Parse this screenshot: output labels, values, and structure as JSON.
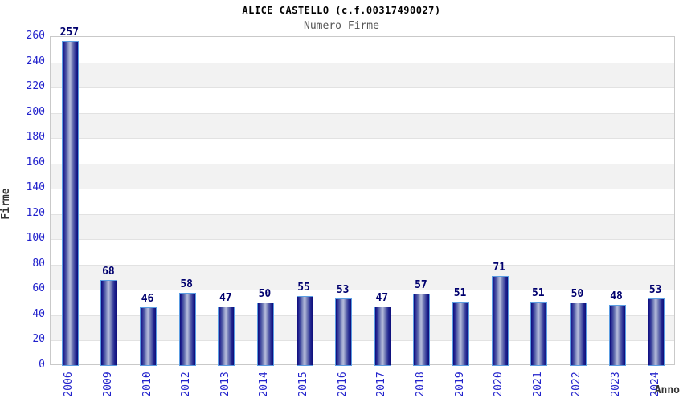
{
  "header": {
    "title": "ALICE CASTELLO (c.f.00317490027)",
    "subtitle": "Numero Firme"
  },
  "chart_data": {
    "type": "bar",
    "title": "ALICE CASTELLO (c.f.00317490027)",
    "subtitle": "Numero Firme",
    "categories": [
      "2006",
      "2009",
      "2010",
      "2012",
      "2013",
      "2014",
      "2015",
      "2016",
      "2017",
      "2018",
      "2019",
      "2020",
      "2021",
      "2022",
      "2023",
      "2024"
    ],
    "values": [
      257,
      68,
      46,
      58,
      47,
      50,
      55,
      53,
      47,
      57,
      51,
      71,
      51,
      50,
      48,
      53
    ],
    "xlabel": "Anno",
    "ylabel": "Firme",
    "ylim": [
      0,
      260
    ],
    "ytick_step": 20,
    "yticks": [
      0,
      20,
      40,
      60,
      80,
      100,
      120,
      140,
      160,
      180,
      200,
      220,
      240,
      260
    ],
    "grid": true,
    "legend_position": "none",
    "colors": {
      "bar_edge": "#0d0d7a",
      "bar_center": "#b4bada",
      "bar_border": "#5b9de2",
      "value_label": "#00006e",
      "tick_label": "#2222cc",
      "axis_title": "#333333",
      "band": "#f2f2f2",
      "gridline": "#e2e2e2",
      "plot_border": "#c9c9c9",
      "title": "#000000",
      "subtitle": "#555555"
    }
  }
}
